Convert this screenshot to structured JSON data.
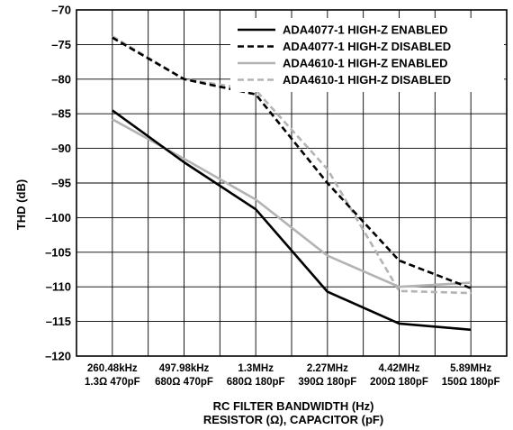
{
  "chart_data": {
    "type": "line",
    "ylabel": "THD (dB)",
    "xlabel_line1": "RC FILTER BANDWIDTH (Hz)",
    "xlabel_line2": "RESISTOR (Ω), CAPACITOR (pF)",
    "ylim": [
      -120,
      -70
    ],
    "yticks": [
      -70,
      -75,
      -80,
      -85,
      -90,
      -95,
      -100,
      -105,
      -110,
      -115,
      -120
    ],
    "grid": true,
    "legend_position": "top-right",
    "categories": [
      {
        "freq": "260.48kHz",
        "rc": "1.3Ω 470pF"
      },
      {
        "freq": "497.98kHz",
        "rc": "680Ω 470pF"
      },
      {
        "freq": "1.3MHz",
        "rc": "680Ω 180pF"
      },
      {
        "freq": "2.27MHz",
        "rc": "390Ω 180pF"
      },
      {
        "freq": "4.42MHz",
        "rc": "200Ω 180pF"
      },
      {
        "freq": "5.89MHz",
        "rc": "150Ω 180pF"
      }
    ],
    "series": [
      {
        "name": "ADA4077-1 HIGH-Z ENABLED",
        "color": "#000000",
        "dashed": false,
        "values": [
          -84.5,
          -92.0,
          -98.8,
          -110.7,
          -115.3,
          -116.2
        ]
      },
      {
        "name": "ADA4077-1 HIGH-Z DISABLED",
        "color": "#000000",
        "dashed": true,
        "values": [
          -74.0,
          -80.0,
          -82.2,
          -95.0,
          -106.2,
          -110.2
        ]
      },
      {
        "name": "ADA4610-1 HIGH-Z ENABLED",
        "color": "#b3b3b3",
        "dashed": false,
        "values": [
          -85.8,
          -91.5,
          -97.4,
          -105.5,
          -110.0,
          -109.4
        ]
      },
      {
        "name": "ADA4610-1 HIGH-Z DISABLED",
        "color": "#b3b3b3",
        "dashed": true,
        "values": [
          -73.8,
          -80.0,
          -81.6,
          -93.0,
          -110.6,
          -110.9
        ]
      }
    ]
  }
}
